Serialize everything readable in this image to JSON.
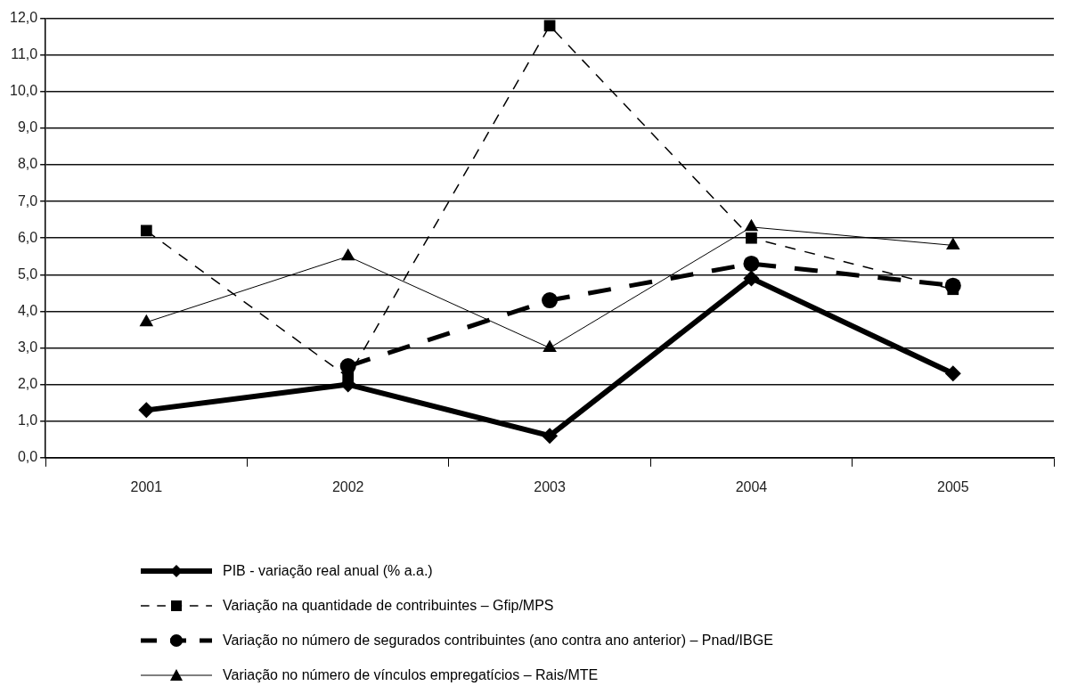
{
  "chart_data": {
    "type": "line",
    "categories": [
      "2001",
      "2002",
      "2003",
      "2004",
      "2005"
    ],
    "series": [
      {
        "name": "PIB - variação real anual (% a.a.)",
        "color": "#000000",
        "values": [
          1.3,
          2.0,
          0.6,
          4.9,
          2.3
        ],
        "marker": "diamond",
        "line_style": "solid"
      },
      {
        "name": "Variação na quantidade de contribuintes – Gfip/MPS",
        "color": "#000000",
        "values": [
          6.2,
          2.2,
          11.8,
          6.0,
          4.6
        ],
        "marker": "square",
        "line_style": "dashed"
      },
      {
        "name": "Variação no número de segurados contribuintes (ano contra ano anterior) – Pnad/IBGE",
        "color": "#000000",
        "values": [
          null,
          2.5,
          4.3,
          5.3,
          4.7
        ],
        "marker": "circle",
        "line_style": "dashed"
      },
      {
        "name": "Variação no número de vínculos empregatícios – Rais/MTE",
        "color": "#000000",
        "values": [
          3.7,
          5.5,
          3.0,
          6.3,
          5.8
        ],
        "marker": "triangle",
        "line_style": "solid"
      }
    ],
    "ylim": [
      0,
      12
    ],
    "yticks": [
      {
        "value": 0,
        "label": "0,0"
      },
      {
        "value": 1,
        "label": "1,0"
      },
      {
        "value": 2,
        "label": "2,0"
      },
      {
        "value": 3,
        "label": "3,0"
      },
      {
        "value": 4,
        "label": "4,0"
      },
      {
        "value": 5,
        "label": "5,0"
      },
      {
        "value": 6,
        "label": "6,0"
      },
      {
        "value": 7,
        "label": "7,0"
      },
      {
        "value": 8,
        "label": "8,0"
      },
      {
        "value": 9,
        "label": "9,0"
      },
      {
        "value": 10,
        "label": "10,0"
      },
      {
        "value": 11,
        "label": "11,0"
      },
      {
        "value": 12,
        "label": "12,0"
      }
    ],
    "grid": "y",
    "legend": "bottom"
  }
}
